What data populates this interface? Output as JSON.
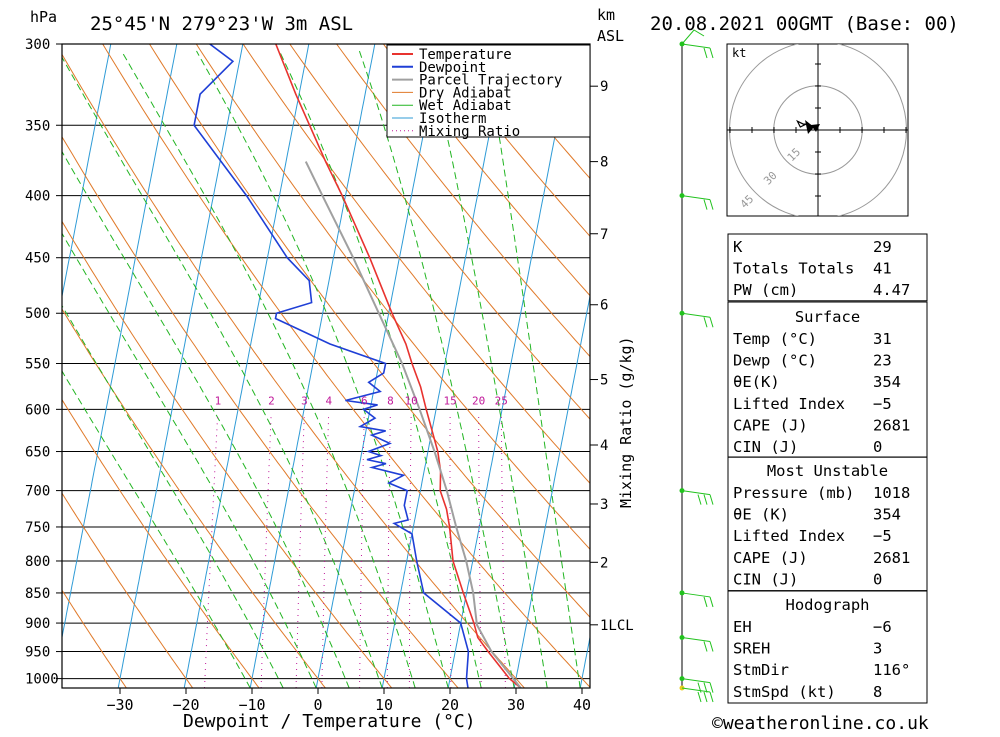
{
  "header": {
    "pressure_unit": "hPa",
    "location": "25°45'N 279°23'W 3m ASL",
    "km_label_1": "km",
    "km_label_2": "ASL",
    "datetime": "20.08.2021 00GMT (Base: 00)"
  },
  "footer": {
    "credit": "©weatheronline.co.uk"
  },
  "colors": {
    "temperature": "#e8332f",
    "dewpoint": "#1f3fd6",
    "parcel": "#a0a0a0",
    "dry_adiabat": "#e07a2a",
    "wet_adiabat": "#22b522",
    "isotherm": "#2f9bd6",
    "mixing_ratio": "#c0189a",
    "wind": "#22c21e"
  },
  "chart_data": {
    "type": "line",
    "title": "",
    "xlabel": "Dewpoint / Temperature (°C)",
    "ylabel": "hPa",
    "secondary_ylabel": "km ASL",
    "mixing_ratio_label": "Mixing Ratio (g/kg)",
    "xlim": [
      -40,
      40
    ],
    "ylim": [
      1018,
      300
    ],
    "x_ticks": [
      -30,
      -20,
      -10,
      0,
      10,
      20,
      30,
      40
    ],
    "x_tick_labels": [
      "−30",
      "−20",
      "−10",
      "0",
      "10",
      "20",
      "30",
      "40"
    ],
    "pressure_levels": [
      300,
      350,
      400,
      450,
      500,
      550,
      600,
      650,
      700,
      750,
      800,
      850,
      900,
      950,
      1000
    ],
    "km_ticks": [
      {
        "p": 903,
        "label": "1LCL"
      },
      {
        "p": 802,
        "label": "2"
      },
      {
        "p": 718,
        "label": "3"
      },
      {
        "p": 642,
        "label": "4"
      },
      {
        "p": 567,
        "label": "5"
      },
      {
        "p": 492,
        "label": "6"
      },
      {
        "p": 430,
        "label": "7"
      },
      {
        "p": 375,
        "label": "8"
      },
      {
        "p": 325,
        "label": "9"
      }
    ],
    "mixing_ratio_values": [
      1,
      2,
      3,
      4,
      6,
      8,
      10,
      15,
      20,
      25
    ],
    "mixing_ratio_labels": [
      "1",
      "2",
      "3",
      "4",
      "6",
      "8",
      "10",
      "15",
      "20",
      "25"
    ],
    "legend": [
      "Temperature",
      "Dewpoint",
      "Parcel Trajectory",
      "Dry Adiabat",
      "Wet Adiabat",
      "Isotherm",
      "Mixing Ratio"
    ],
    "legend_position": "top-right",
    "series": [
      {
        "name": "Temperature",
        "points": [
          [
            1018,
            31
          ],
          [
            1000,
            29
          ],
          [
            950,
            25
          ],
          [
            925,
            23
          ],
          [
            900,
            22
          ],
          [
            850,
            19.5
          ],
          [
            800,
            17
          ],
          [
            750,
            15.5
          ],
          [
            725,
            14.5
          ],
          [
            700,
            13
          ],
          [
            675,
            12.5
          ],
          [
            650,
            11.5
          ],
          [
            600,
            8.5
          ],
          [
            575,
            7
          ],
          [
            550,
            5
          ],
          [
            530,
            3.5
          ],
          [
            500,
            0.5
          ],
          [
            450,
            -4.5
          ],
          [
            400,
            -10.5
          ],
          [
            375,
            -14
          ],
          [
            350,
            -17.5
          ],
          [
            330,
            -20.5
          ],
          [
            300,
            -25
          ]
        ]
      },
      {
        "name": "Dewpoint",
        "points": [
          [
            1018,
            23
          ],
          [
            1000,
            22.5
          ],
          [
            950,
            22
          ],
          [
            900,
            20
          ],
          [
            850,
            13.5
          ],
          [
            800,
            11.5
          ],
          [
            760,
            10
          ],
          [
            745,
            7
          ],
          [
            740,
            9
          ],
          [
            720,
            8
          ],
          [
            700,
            8
          ],
          [
            690,
            5
          ],
          [
            680,
            7
          ],
          [
            670,
            2
          ],
          [
            665,
            4
          ],
          [
            660,
            1
          ],
          [
            655,
            3
          ],
          [
            650,
            1
          ],
          [
            640,
            4
          ],
          [
            630,
            1
          ],
          [
            625,
            3
          ],
          [
            620,
            -1
          ],
          [
            610,
            1
          ],
          [
            600,
            -1
          ],
          [
            595,
            1
          ],
          [
            590,
            -4
          ],
          [
            580,
            1
          ],
          [
            570,
            -1
          ],
          [
            560,
            1
          ],
          [
            550,
            1
          ],
          [
            530,
            -8
          ],
          [
            505,
            -17
          ],
          [
            500,
            -17
          ],
          [
            490,
            -12
          ],
          [
            470,
            -13
          ],
          [
            450,
            -17
          ],
          [
            400,
            -25
          ],
          [
            350,
            -35
          ],
          [
            330,
            -35
          ],
          [
            310,
            -31
          ],
          [
            300,
            -35
          ]
        ]
      },
      {
        "name": "Parcel Trajectory",
        "points": [
          [
            1018,
            31
          ],
          [
            950,
            25.5
          ],
          [
            903,
            22.5
          ],
          [
            850,
            21
          ],
          [
            800,
            19
          ],
          [
            750,
            16.5
          ],
          [
            700,
            14
          ],
          [
            650,
            11
          ],
          [
            600,
            7.5
          ],
          [
            550,
            3.5
          ],
          [
            500,
            -1.5
          ],
          [
            450,
            -7
          ],
          [
            400,
            -13.5
          ],
          [
            375,
            -17
          ]
        ]
      }
    ],
    "hodograph": {
      "unit_label": "kt",
      "rings": [
        15,
        30,
        45
      ],
      "ring_labels": [
        "15",
        "30",
        "45"
      ],
      "points_kt": [
        [
          0,
          0
        ],
        [
          -2,
          1
        ],
        [
          -4,
          2
        ],
        [
          -6,
          1
        ],
        [
          -7,
          3
        ],
        [
          -5,
          2
        ],
        [
          -4,
          2
        ]
      ]
    },
    "wind_profile": [
      {
        "p": 1018,
        "flags": 3
      },
      {
        "p": 1000,
        "flags": 3
      },
      {
        "p": 925,
        "flags": 2
      },
      {
        "p": 850,
        "flags": 2
      },
      {
        "p": 700,
        "flags": 3
      },
      {
        "p": 500,
        "flags": 2
      },
      {
        "p": 400,
        "flags": 2
      },
      {
        "p": 300,
        "flags": 2
      }
    ]
  },
  "indices": {
    "general": [
      {
        "label": "K",
        "value": "29"
      },
      {
        "label": "Totals Totals",
        "value": "41"
      },
      {
        "label": "PW (cm)",
        "value": "4.47"
      }
    ],
    "surface_title": "Surface",
    "surface": [
      {
        "label": "Temp (°C)",
        "value": "31"
      },
      {
        "label": "Dewp (°C)",
        "value": "23"
      },
      {
        "label": "θE(K)",
        "value": "354"
      },
      {
        "label": "Lifted Index",
        "value": "−5"
      },
      {
        "label": "CAPE (J)",
        "value": "2681"
      },
      {
        "label": "CIN (J)",
        "value": "0"
      }
    ],
    "mu_title": "Most Unstable",
    "mu": [
      {
        "label": "Pressure (mb)",
        "value": "1018"
      },
      {
        "label": "θE (K)",
        "value": "354"
      },
      {
        "label": "Lifted Index",
        "value": "−5"
      },
      {
        "label": "CAPE (J)",
        "value": "2681"
      },
      {
        "label": "CIN (J)",
        "value": "0"
      }
    ],
    "hodo_title": "Hodograph",
    "hodo": [
      {
        "label": "EH",
        "value": "−6"
      },
      {
        "label": "SREH",
        "value": "3"
      },
      {
        "label": "StmDir",
        "value": "116°"
      },
      {
        "label": "StmSpd (kt)",
        "value": "8"
      }
    ]
  }
}
